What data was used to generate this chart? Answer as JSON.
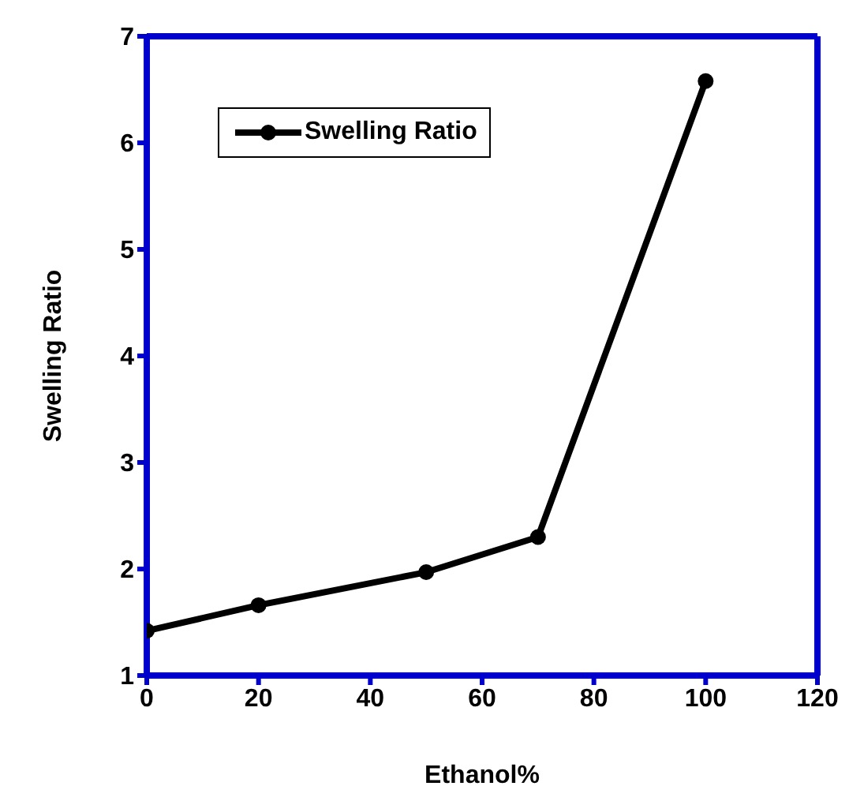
{
  "chart_data": {
    "type": "line",
    "xlabel": "Ethanol%",
    "ylabel": "Swelling Ratio",
    "x": [
      0,
      20,
      50,
      70,
      100
    ],
    "series": [
      {
        "name": "Swelling Ratio",
        "color": "#000000",
        "values": [
          1.42,
          1.66,
          1.97,
          2.3,
          6.58
        ]
      }
    ],
    "xlim": [
      0,
      120
    ],
    "xticks": [
      0,
      20,
      40,
      60,
      80,
      100,
      120
    ],
    "ylim": [
      1,
      7
    ],
    "yticks": [
      1,
      2,
      3,
      4,
      5,
      6,
      7
    ],
    "grid": false,
    "legend": "top left",
    "marker": "circle",
    "line_style": "solid"
  }
}
